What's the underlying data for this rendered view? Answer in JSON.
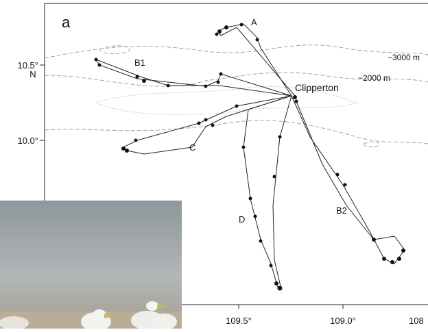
{
  "panel_label": "a",
  "y_axis": {
    "ticks": [
      "10.5°",
      "10.0°"
    ],
    "unit": "N"
  },
  "x_axis": {
    "ticks": [
      "109.5°",
      "109.0°",
      "108"
    ]
  },
  "island": "Clipperton",
  "contours": [
    "−3000 m",
    "−2000 m"
  ],
  "tracks": [
    "A",
    "B1",
    "B2",
    "C",
    "D"
  ]
}
